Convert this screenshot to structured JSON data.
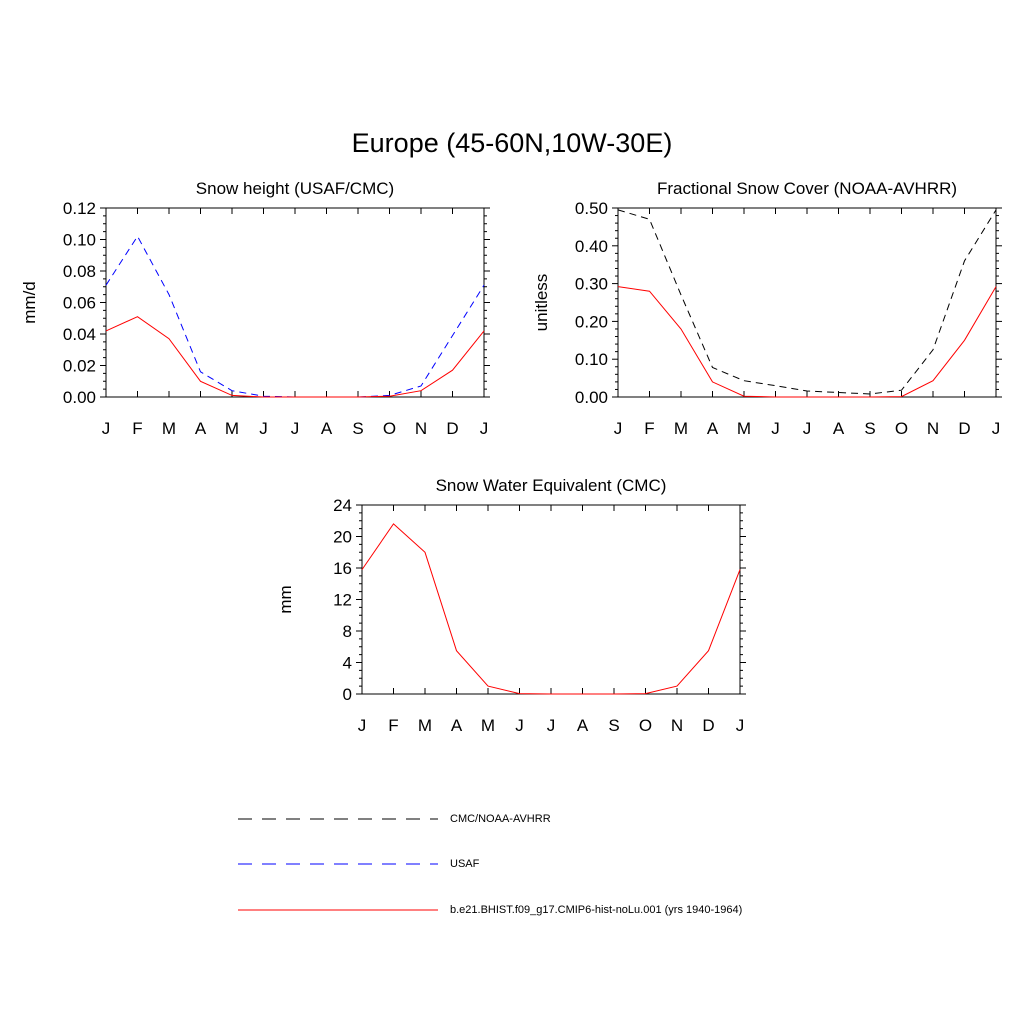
{
  "title": "Europe (45-60N,10W-30E)",
  "month_labels": [
    "J",
    "F",
    "M",
    "A",
    "M",
    "J",
    "J",
    "A",
    "S",
    "O",
    "N",
    "D",
    "J"
  ],
  "colors": {
    "model": "#ff0000",
    "usaf": "#0000ff",
    "obs": "#000000"
  },
  "legend": [
    {
      "label": "CMC/NOAA-AVHRR",
      "color": "#000000",
      "style": "dashed"
    },
    {
      "label": "USAF",
      "color": "#0000ff",
      "style": "dashed"
    },
    {
      "label": "b.e21.BHIST.f09_g17.CMIP6-hist-noLu.001 (yrs 1940-1964)",
      "color": "#ff0000",
      "style": "solid"
    }
  ],
  "chart_data": [
    {
      "type": "line",
      "title": "Snow height (USAF/CMC)",
      "ylabel": "mm/d",
      "ylim": [
        0,
        0.12
      ],
      "yticks": [
        "0.00",
        "0.02",
        "0.04",
        "0.06",
        "0.08",
        "0.10",
        "0.12"
      ],
      "series": [
        {
          "name": "CMC/NOAA-AVHRR",
          "color": "#000000",
          "style": "dashed",
          "values": [
            0,
            0,
            0,
            0,
            0,
            0,
            0,
            0,
            0,
            0,
            0,
            0,
            0
          ]
        },
        {
          "name": "USAF",
          "color": "#0000ff",
          "style": "dashed",
          "values": [
            0.071,
            0.102,
            0.065,
            0.016,
            0.004,
            0.0005,
            0,
            0,
            0,
            0.001,
            0.007,
            0.039,
            0.071
          ]
        },
        {
          "name": "b.e21.BHIST.f09_g17.CMIP6-hist-noLu.001 (yrs 1940-1964)",
          "color": "#ff0000",
          "style": "solid",
          "values": [
            0.042,
            0.051,
            0.037,
            0.01,
            0.001,
            0,
            0,
            0,
            0,
            0.0005,
            0.004,
            0.017,
            0.042
          ]
        }
      ]
    },
    {
      "type": "line",
      "title": "Fractional Snow Cover (NOAA-AVHRR)",
      "ylabel": "unitless",
      "ylim": [
        0,
        0.5
      ],
      "yticks": [
        "0.00",
        "0.10",
        "0.20",
        "0.30",
        "0.40",
        "0.50"
      ],
      "series": [
        {
          "name": "CMC/NOAA-AVHRR",
          "color": "#000000",
          "style": "dashed",
          "values": [
            0.495,
            0.47,
            0.27,
            0.078,
            0.043,
            0.03,
            0.016,
            0.012,
            0.008,
            0.018,
            0.125,
            0.36,
            0.495
          ]
        },
        {
          "name": "b.e21.BHIST.f09_g17.CMIP6-hist-noLu.001 (yrs 1940-1964)",
          "color": "#ff0000",
          "style": "solid",
          "values": [
            0.292,
            0.28,
            0.18,
            0.04,
            0.002,
            0,
            0,
            0,
            0,
            0.001,
            0.043,
            0.15,
            0.292
          ]
        }
      ]
    },
    {
      "type": "line",
      "title": "Snow Water Equivalent (CMC)",
      "ylabel": "mm",
      "ylim": [
        0,
        24
      ],
      "yticks": [
        "0",
        "4",
        "8",
        "12",
        "16",
        "20",
        "24"
      ],
      "series": [
        {
          "name": "CMC/NOAA-AVHRR",
          "color": "#000000",
          "style": "dashed",
          "values": [
            0,
            0,
            0,
            0,
            0,
            0,
            0,
            0,
            0,
            0,
            0,
            0,
            0
          ]
        },
        {
          "name": "b.e21.BHIST.f09_g17.CMIP6-hist-noLu.001 (yrs 1940-1964)",
          "color": "#ff0000",
          "style": "solid",
          "values": [
            15.8,
            21.6,
            18.0,
            5.5,
            1.0,
            0.05,
            0,
            0,
            0,
            0.05,
            1.0,
            5.5,
            15.8
          ]
        }
      ]
    }
  ]
}
